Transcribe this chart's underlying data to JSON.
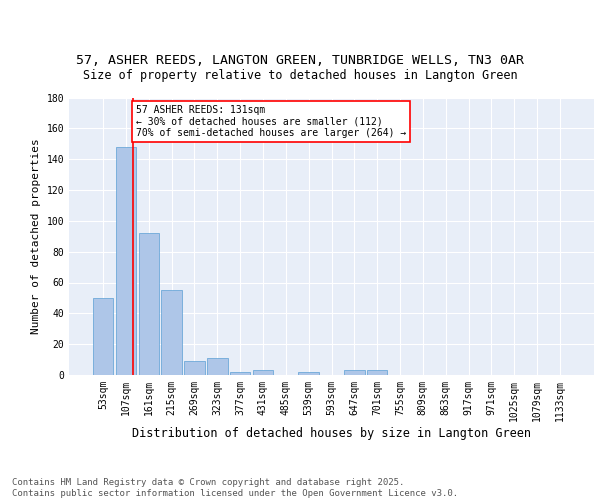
{
  "title1": "57, ASHER REEDS, LANGTON GREEN, TUNBRIDGE WELLS, TN3 0AR",
  "title2": "Size of property relative to detached houses in Langton Green",
  "xlabel": "Distribution of detached houses by size in Langton Green",
  "ylabel": "Number of detached properties",
  "footnote": "Contains HM Land Registry data © Crown copyright and database right 2025.\nContains public sector information licensed under the Open Government Licence v3.0.",
  "bar_labels": [
    "53sqm",
    "107sqm",
    "161sqm",
    "215sqm",
    "269sqm",
    "323sqm",
    "377sqm",
    "431sqm",
    "485sqm",
    "539sqm",
    "593sqm",
    "647sqm",
    "701sqm",
    "755sqm",
    "809sqm",
    "863sqm",
    "917sqm",
    "971sqm",
    "1025sqm",
    "1079sqm",
    "1133sqm"
  ],
  "bar_values": [
    50,
    148,
    92,
    55,
    9,
    11,
    2,
    3,
    0,
    2,
    0,
    3,
    3,
    0,
    0,
    0,
    0,
    0,
    0,
    0,
    0
  ],
  "bar_color": "#aec6e8",
  "bar_edge_color": "#5a9fd4",
  "vline_x": 1.3,
  "vline_color": "red",
  "annotation_text": "57 ASHER REEDS: 131sqm\n← 30% of detached houses are smaller (112)\n70% of semi-detached houses are larger (264) →",
  "annotation_box_color": "white",
  "annotation_box_edge": "red",
  "ylim": [
    0,
    180
  ],
  "yticks": [
    0,
    20,
    40,
    60,
    80,
    100,
    120,
    140,
    160,
    180
  ],
  "background_color": "#e8eef8",
  "grid_color": "white",
  "title1_fontsize": 9.5,
  "title2_fontsize": 8.5,
  "xlabel_fontsize": 8.5,
  "ylabel_fontsize": 8,
  "tick_fontsize": 7,
  "annotation_fontsize": 7,
  "footnote_fontsize": 6.5
}
